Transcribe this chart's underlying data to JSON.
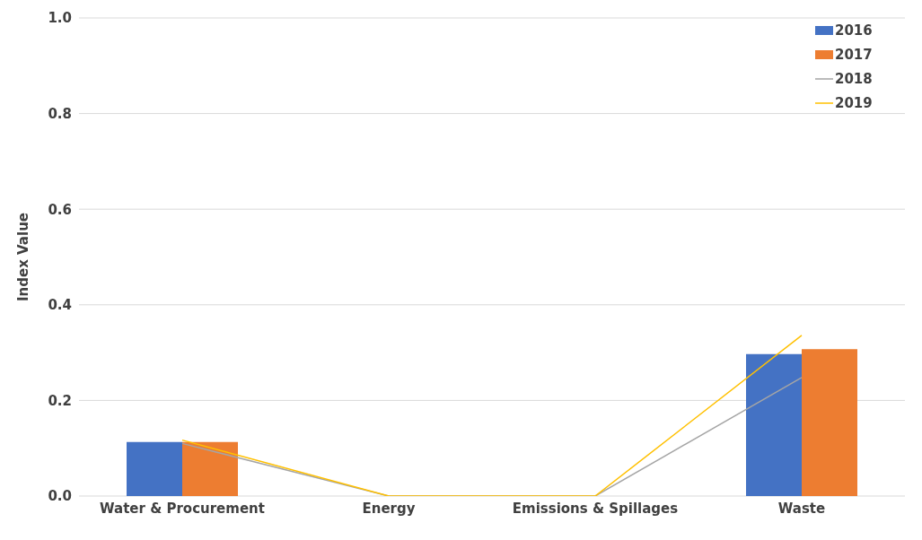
{
  "chart_data": {
    "type": "bar",
    "ylabel": "Index Value",
    "categories": [
      "Water & Procurement",
      "Energy",
      "Emissions & Spillages",
      "Waste"
    ],
    "series": [
      {
        "name": "2016",
        "type": "bar",
        "color": "#4472c4",
        "values": [
          0.113,
          0,
          0,
          0.297
        ]
      },
      {
        "name": "2017",
        "type": "bar",
        "color": "#ed7d31",
        "values": [
          0.113,
          0,
          0,
          0.307
        ]
      },
      {
        "name": "2018",
        "type": "line",
        "color": "#a5a5a5",
        "values": [
          0.11,
          0,
          0,
          0.248
        ]
      },
      {
        "name": "2019",
        "type": "line",
        "color": "#ffc000",
        "values": [
          0.117,
          0,
          0,
          0.336
        ]
      }
    ],
    "ylim": [
      0,
      1
    ],
    "yticks": [
      {
        "value": 0,
        "label": "0.0"
      },
      {
        "value": 0.2,
        "label": "0.2"
      },
      {
        "value": 0.4,
        "label": "0.4"
      },
      {
        "value": 0.6,
        "label": "0.6"
      },
      {
        "value": 0.8,
        "label": "0.8"
      },
      {
        "value": 1,
        "label": "1.0"
      }
    ],
    "grid": "y",
    "legend": "top right",
    "marker": "none"
  }
}
